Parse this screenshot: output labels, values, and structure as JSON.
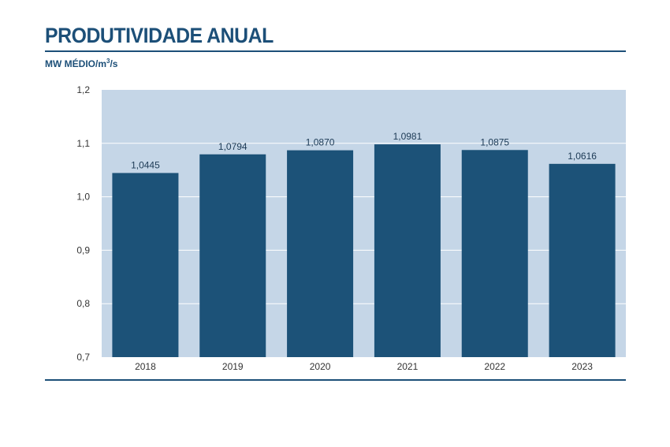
{
  "header": {
    "title": "PRODUTIVIDADE ANUAL",
    "unit_prefix": "MW MÉDIO/m",
    "unit_sup": "3",
    "unit_suffix": "/s"
  },
  "colors": {
    "bar": "#1c5278",
    "plot_background": "#c5d6e7",
    "grid": "#ffffff",
    "accent": "#1c4f78"
  },
  "chart_data": {
    "type": "bar",
    "title": "PRODUTIVIDADE ANUAL",
    "ylabel": "MW MÉDIO/m³/s",
    "xlabel": "",
    "categories": [
      "2018",
      "2019",
      "2020",
      "2021",
      "2022",
      "2023"
    ],
    "values": [
      1.0445,
      1.0794,
      1.087,
      1.0981,
      1.0875,
      1.0616
    ],
    "value_labels": [
      "1,0445",
      "1,0794",
      "1,0870",
      "1,0981",
      "1,0875",
      "1,0616"
    ],
    "yticks": [
      0.7,
      0.8,
      0.9,
      1.0,
      1.1,
      1.2
    ],
    "ytick_labels": [
      "0,7",
      "0,8",
      "0,9",
      "1,0",
      "1,1",
      "1,2"
    ],
    "ylim": [
      0.7,
      1.2
    ],
    "grid": true,
    "legend": "none"
  }
}
